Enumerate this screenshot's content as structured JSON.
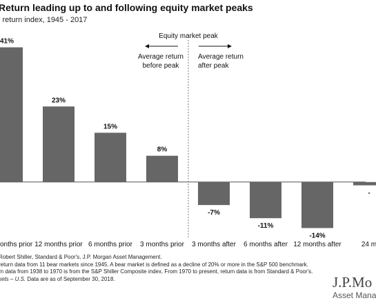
{
  "header": {
    "title": "Return leading up to and following equity market peaks",
    "subtitle": "l return index, 1945 - 2017"
  },
  "chart_data": {
    "type": "bar",
    "categories": [
      "onths prior",
      "12 months prior",
      "6 months prior",
      "3 months prior",
      "3 months after",
      "6 months after",
      "12 months after",
      "24 m"
    ],
    "values": [
      41,
      23,
      15,
      8,
      -7,
      -11,
      -14,
      -1
    ],
    "data_labels": [
      "41%",
      "23%",
      "15%",
      "8%",
      "-7%",
      "-11%",
      "-14%",
      "-"
    ],
    "ylim": [
      -16,
      47
    ],
    "bar_color": "#666666",
    "annotations": {
      "peak_label": "Equity market peak",
      "before_label_line1": "Average return",
      "before_label_line2": "before peak",
      "after_label_line1": "Average return",
      "after_label_line2": "after peak"
    }
  },
  "footnotes": {
    "line1": "Robert Shiller, Standard & Poor's, J.P. Morgan Asset Management.",
    "line2": "return data from 11 bear markets since 1945. A bear market is defined as a decline of 20% or more in the S&P 500 benchmark.",
    "line3": "rn data from 1938 to 1970 is from the S&P Shiller Composite index. From 1970 to present, return data is from Standard & Poor's.",
    "line4_italic": "kets – U.S.",
    "line4_rest": " Data are as of September 30, 2018."
  },
  "logo": {
    "mark": "J.P.Mo",
    "sub": "Asset Mana"
  }
}
